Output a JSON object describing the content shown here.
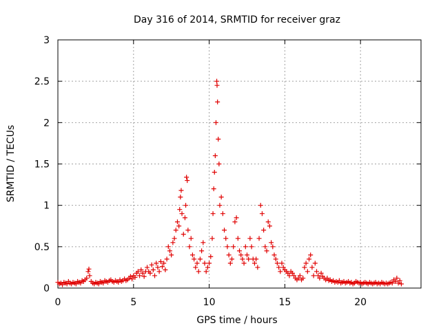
{
  "chart_data": {
    "type": "scatter",
    "title": "Day 316 of 2014, SRMTID for receiver graz",
    "xlabel": "GPS time / hours",
    "ylabel": "SRMTID / TECUs",
    "xlim": [
      0,
      24
    ],
    "ylim": [
      0,
      3
    ],
    "xticks": [
      0,
      5,
      10,
      15,
      20
    ],
    "xtick_labels": [
      "0",
      "5",
      "10",
      "15",
      "20"
    ],
    "yticks": [
      0,
      0.5,
      1,
      1.5,
      2,
      2.5,
      3
    ],
    "ytick_labels": [
      "0",
      "0.5",
      "1",
      "1.5",
      "2",
      "2.5",
      "3"
    ],
    "grid": true,
    "legend": "none",
    "marker": "+",
    "series": [
      {
        "name": "SRMTID",
        "color": "#e00000",
        "points": [
          [
            0.0,
            0.07
          ],
          [
            0.1,
            0.05
          ],
          [
            0.2,
            0.06
          ],
          [
            0.3,
            0.04
          ],
          [
            0.4,
            0.07
          ],
          [
            0.5,
            0.06
          ],
          [
            0.6,
            0.05
          ],
          [
            0.7,
            0.08
          ],
          [
            0.8,
            0.06
          ],
          [
            0.9,
            0.05
          ],
          [
            1.0,
            0.07
          ],
          [
            1.1,
            0.06
          ],
          [
            1.2,
            0.05
          ],
          [
            1.3,
            0.08
          ],
          [
            1.4,
            0.07
          ],
          [
            1.5,
            0.06
          ],
          [
            1.6,
            0.09
          ],
          [
            1.7,
            0.08
          ],
          [
            1.8,
            0.1
          ],
          [
            1.9,
            0.12
          ],
          [
            2.0,
            0.2
          ],
          [
            2.05,
            0.23
          ],
          [
            2.1,
            0.15
          ],
          [
            2.2,
            0.08
          ],
          [
            2.3,
            0.06
          ],
          [
            2.4,
            0.05
          ],
          [
            2.5,
            0.07
          ],
          [
            2.6,
            0.06
          ],
          [
            2.7,
            0.05
          ],
          [
            2.8,
            0.08
          ],
          [
            2.9,
            0.07
          ],
          [
            3.0,
            0.06
          ],
          [
            3.1,
            0.09
          ],
          [
            3.2,
            0.08
          ],
          [
            3.3,
            0.07
          ],
          [
            3.4,
            0.09
          ],
          [
            3.5,
            0.1
          ],
          [
            3.6,
            0.08
          ],
          [
            3.7,
            0.07
          ],
          [
            3.8,
            0.09
          ],
          [
            3.9,
            0.08
          ],
          [
            4.0,
            0.07
          ],
          [
            4.1,
            0.1
          ],
          [
            4.2,
            0.08
          ],
          [
            4.3,
            0.09
          ],
          [
            4.4,
            0.11
          ],
          [
            4.5,
            0.09
          ],
          [
            4.6,
            0.1
          ],
          [
            4.7,
            0.12
          ],
          [
            4.8,
            0.14
          ],
          [
            4.9,
            0.11
          ],
          [
            5.0,
            0.15
          ],
          [
            5.1,
            0.13
          ],
          [
            5.2,
            0.18
          ],
          [
            5.3,
            0.2
          ],
          [
            5.4,
            0.15
          ],
          [
            5.5,
            0.22
          ],
          [
            5.6,
            0.18
          ],
          [
            5.7,
            0.14
          ],
          [
            5.8,
            0.2
          ],
          [
            5.9,
            0.25
          ],
          [
            6.0,
            0.2
          ],
          [
            6.1,
            0.18
          ],
          [
            6.2,
            0.28
          ],
          [
            6.3,
            0.22
          ],
          [
            6.4,
            0.15
          ],
          [
            6.5,
            0.3
          ],
          [
            6.6,
            0.25
          ],
          [
            6.7,
            0.2
          ],
          [
            6.8,
            0.32
          ],
          [
            6.9,
            0.26
          ],
          [
            7.0,
            0.3
          ],
          [
            7.1,
            0.22
          ],
          [
            7.2,
            0.35
          ],
          [
            7.3,
            0.5
          ],
          [
            7.4,
            0.45
          ],
          [
            7.5,
            0.4
          ],
          [
            7.6,
            0.55
          ],
          [
            7.7,
            0.6
          ],
          [
            7.8,
            0.7
          ],
          [
            7.9,
            0.8
          ],
          [
            8.0,
            0.75
          ],
          [
            8.05,
            0.95
          ],
          [
            8.1,
            1.1
          ],
          [
            8.15,
            1.18
          ],
          [
            8.2,
            0.9
          ],
          [
            8.3,
            0.65
          ],
          [
            8.4,
            0.85
          ],
          [
            8.45,
            1.0
          ],
          [
            8.5,
            1.34
          ],
          [
            8.55,
            1.3
          ],
          [
            8.6,
            0.7
          ],
          [
            8.7,
            0.5
          ],
          [
            8.8,
            0.6
          ],
          [
            8.9,
            0.4
          ],
          [
            9.0,
            0.35
          ],
          [
            9.1,
            0.25
          ],
          [
            9.2,
            0.3
          ],
          [
            9.3,
            0.2
          ],
          [
            9.4,
            0.35
          ],
          [
            9.5,
            0.45
          ],
          [
            9.6,
            0.55
          ],
          [
            9.7,
            0.3
          ],
          [
            9.8,
            0.2
          ],
          [
            9.9,
            0.25
          ],
          [
            10.0,
            0.3
          ],
          [
            10.1,
            0.38
          ],
          [
            10.2,
            0.6
          ],
          [
            10.25,
            0.9
          ],
          [
            10.3,
            1.2
          ],
          [
            10.35,
            1.4
          ],
          [
            10.4,
            1.6
          ],
          [
            10.45,
            2.0
          ],
          [
            10.5,
            2.5
          ],
          [
            10.52,
            2.45
          ],
          [
            10.55,
            2.25
          ],
          [
            10.6,
            1.8
          ],
          [
            10.65,
            1.5
          ],
          [
            10.7,
            1.0
          ],
          [
            10.8,
            1.1
          ],
          [
            10.9,
            0.9
          ],
          [
            11.0,
            0.7
          ],
          [
            11.1,
            0.6
          ],
          [
            11.2,
            0.5
          ],
          [
            11.3,
            0.4
          ],
          [
            11.4,
            0.3
          ],
          [
            11.5,
            0.35
          ],
          [
            11.6,
            0.5
          ],
          [
            11.7,
            0.8
          ],
          [
            11.8,
            0.85
          ],
          [
            11.9,
            0.6
          ],
          [
            12.0,
            0.45
          ],
          [
            12.1,
            0.4
          ],
          [
            12.2,
            0.35
          ],
          [
            12.3,
            0.3
          ],
          [
            12.4,
            0.5
          ],
          [
            12.5,
            0.4
          ],
          [
            12.6,
            0.35
          ],
          [
            12.7,
            0.6
          ],
          [
            12.8,
            0.5
          ],
          [
            12.9,
            0.35
          ],
          [
            13.0,
            0.3
          ],
          [
            13.1,
            0.35
          ],
          [
            13.2,
            0.25
          ],
          [
            13.3,
            0.6
          ],
          [
            13.4,
            1.0
          ],
          [
            13.5,
            0.9
          ],
          [
            13.6,
            0.7
          ],
          [
            13.7,
            0.5
          ],
          [
            13.8,
            0.45
          ],
          [
            13.9,
            0.8
          ],
          [
            14.0,
            0.75
          ],
          [
            14.1,
            0.55
          ],
          [
            14.2,
            0.5
          ],
          [
            14.3,
            0.4
          ],
          [
            14.4,
            0.35
          ],
          [
            14.5,
            0.3
          ],
          [
            14.6,
            0.25
          ],
          [
            14.7,
            0.2
          ],
          [
            14.8,
            0.3
          ],
          [
            14.9,
            0.25
          ],
          [
            15.0,
            0.22
          ],
          [
            15.1,
            0.2
          ],
          [
            15.2,
            0.18
          ],
          [
            15.3,
            0.15
          ],
          [
            15.4,
            0.2
          ],
          [
            15.5,
            0.18
          ],
          [
            15.6,
            0.15
          ],
          [
            15.7,
            0.12
          ],
          [
            15.8,
            0.1
          ],
          [
            15.9,
            0.12
          ],
          [
            16.0,
            0.15
          ],
          [
            16.1,
            0.1
          ],
          [
            16.2,
            0.12
          ],
          [
            16.3,
            0.25
          ],
          [
            16.4,
            0.3
          ],
          [
            16.5,
            0.2
          ],
          [
            16.6,
            0.35
          ],
          [
            16.7,
            0.4
          ],
          [
            16.8,
            0.25
          ],
          [
            16.9,
            0.15
          ],
          [
            17.0,
            0.3
          ],
          [
            17.1,
            0.2
          ],
          [
            17.2,
            0.15
          ],
          [
            17.3,
            0.12
          ],
          [
            17.4,
            0.18
          ],
          [
            17.5,
            0.14
          ],
          [
            17.6,
            0.12
          ],
          [
            17.7,
            0.1
          ],
          [
            17.8,
            0.12
          ],
          [
            17.9,
            0.09
          ],
          [
            18.0,
            0.1
          ],
          [
            18.1,
            0.08
          ],
          [
            18.2,
            0.09
          ],
          [
            18.3,
            0.07
          ],
          [
            18.4,
            0.08
          ],
          [
            18.5,
            0.07
          ],
          [
            18.6,
            0.09
          ],
          [
            18.7,
            0.06
          ],
          [
            18.8,
            0.07
          ],
          [
            18.9,
            0.08
          ],
          [
            19.0,
            0.06
          ],
          [
            19.1,
            0.07
          ],
          [
            19.2,
            0.08
          ],
          [
            19.3,
            0.06
          ],
          [
            19.4,
            0.07
          ],
          [
            19.5,
            0.05
          ],
          [
            19.6,
            0.06
          ],
          [
            19.7,
            0.08
          ],
          [
            19.8,
            0.07
          ],
          [
            19.9,
            0.06
          ],
          [
            20.0,
            0.07
          ],
          [
            20.1,
            0.05
          ],
          [
            20.2,
            0.06
          ],
          [
            20.3,
            0.07
          ],
          [
            20.4,
            0.06
          ],
          [
            20.5,
            0.05
          ],
          [
            20.6,
            0.07
          ],
          [
            20.7,
            0.06
          ],
          [
            20.8,
            0.05
          ],
          [
            20.9,
            0.06
          ],
          [
            21.0,
            0.07
          ],
          [
            21.1,
            0.05
          ],
          [
            21.2,
            0.06
          ],
          [
            21.3,
            0.05
          ],
          [
            21.4,
            0.07
          ],
          [
            21.5,
            0.06
          ],
          [
            21.6,
            0.05
          ],
          [
            21.7,
            0.06
          ],
          [
            21.8,
            0.05
          ],
          [
            21.9,
            0.06
          ],
          [
            22.0,
            0.07
          ],
          [
            22.1,
            0.06
          ],
          [
            22.2,
            0.1
          ],
          [
            22.3,
            0.08
          ],
          [
            22.4,
            0.12
          ],
          [
            22.5,
            0.06
          ],
          [
            22.6,
            0.09
          ],
          [
            22.7,
            0.05
          ]
        ]
      }
    ]
  }
}
